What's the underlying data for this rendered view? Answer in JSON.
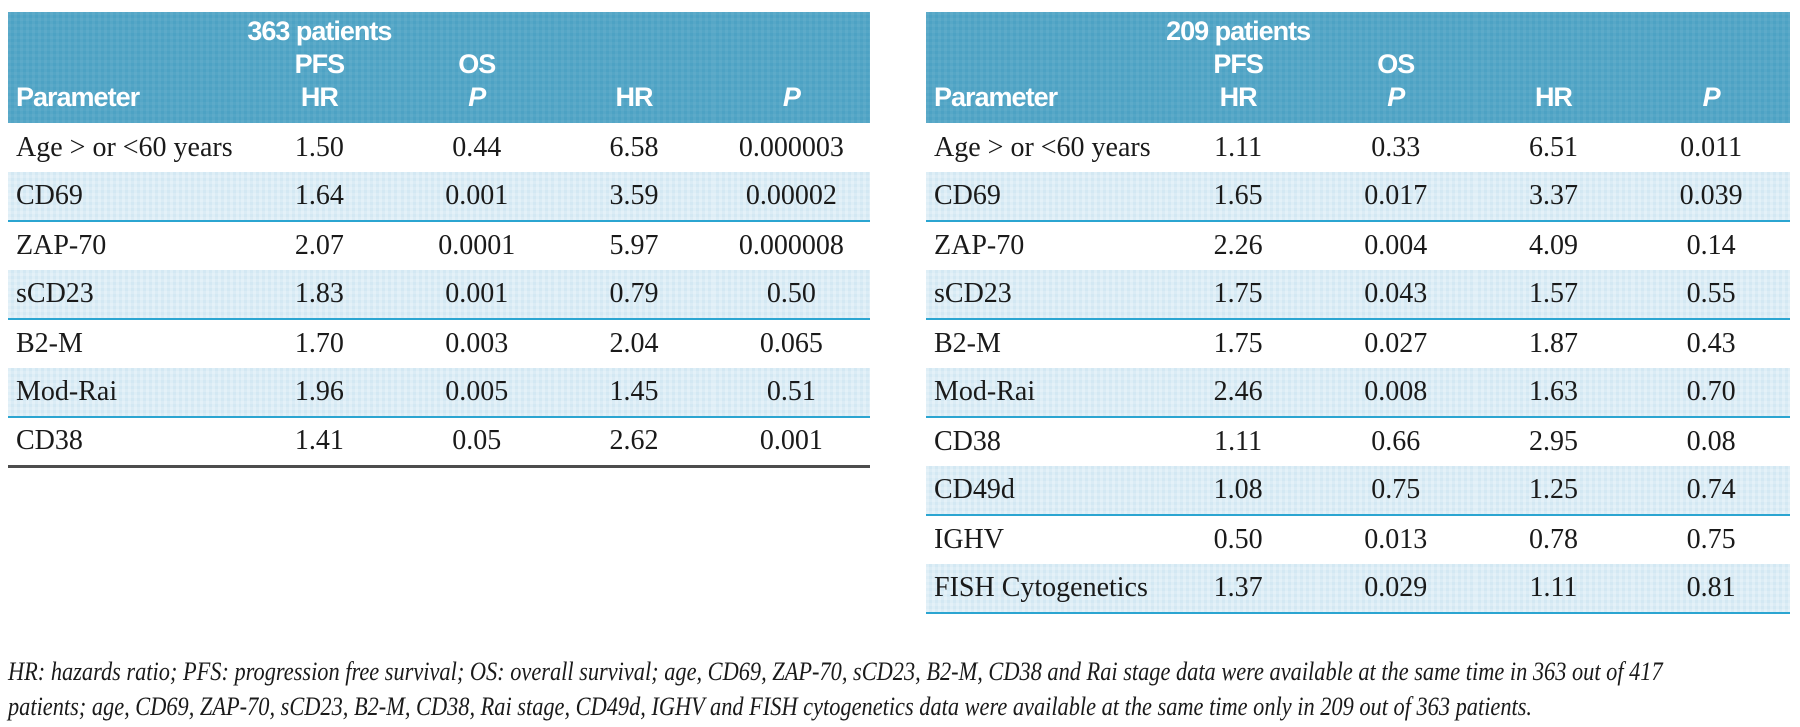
{
  "colors": {
    "header_bg": "#4da2c4",
    "header_text": "#ffffff",
    "stripe_bg": "#d3e8f3",
    "stripe_border": "#2ba5d1",
    "table_end_border": "#4d4d4d",
    "body_text": "#1a1a1a",
    "page_bg": "#ffffff"
  },
  "tables": [
    {
      "title": "363 patients",
      "headers": {
        "parameter": "Parameter",
        "group_pfs": "PFS",
        "group_os": "OS",
        "hr": "HR",
        "p": "P"
      },
      "rows": [
        [
          "Age > or <60 years",
          "1.50",
          "0.44",
          "6.58",
          "0.000003"
        ],
        [
          "CD69",
          "1.64",
          "0.001",
          "3.59",
          "0.00002"
        ],
        [
          "ZAP-70",
          "2.07",
          "0.0001",
          "5.97",
          "0.000008"
        ],
        [
          "sCD23",
          "1.83",
          "0.001",
          "0.79",
          "0.50"
        ],
        [
          "B2-M",
          "1.70",
          "0.003",
          "2.04",
          "0.065"
        ],
        [
          "Mod-Rai",
          "1.96",
          "0.005",
          "1.45",
          "0.51"
        ],
        [
          "CD38",
          "1.41",
          "0.05",
          "2.62",
          "0.001"
        ]
      ]
    },
    {
      "title": "209 patients",
      "headers": {
        "parameter": "Parameter",
        "group_pfs": "PFS",
        "group_os": "OS",
        "hr": "HR",
        "p": "P"
      },
      "rows": [
        [
          "Age > or <60 years",
          "1.11",
          "0.33",
          "6.51",
          "0.011"
        ],
        [
          "CD69",
          "1.65",
          "0.017",
          "3.37",
          "0.039"
        ],
        [
          "ZAP-70",
          "2.26",
          "0.004",
          "4.09",
          "0.14"
        ],
        [
          "sCD23",
          "1.75",
          "0.043",
          "1.57",
          "0.55"
        ],
        [
          "B2-M",
          "1.75",
          "0.027",
          "1.87",
          "0.43"
        ],
        [
          "Mod-Rai",
          "2.46",
          "0.008",
          "1.63",
          "0.70"
        ],
        [
          "CD38",
          "1.11",
          "0.66",
          "2.95",
          "0.08"
        ],
        [
          "CD49d",
          "1.08",
          "0.75",
          "1.25",
          "0.74"
        ],
        [
          "IGHV",
          "0.50",
          "0.013",
          "0.78",
          "0.75"
        ],
        [
          "FISH Cytogenetics",
          "1.37",
          "0.029",
          "1.11",
          "0.81"
        ]
      ]
    }
  ],
  "footnote": {
    "lines": [
      "HR: hazards ratio; PFS: progression free survival; OS: overall survival; age, CD69, ZAP-70, sCD23, B2-M, CD38 and Rai stage data were available at the same time in 363 out of 417",
      "patients; age, CD69, ZAP-70, sCD23, B2-M, CD38, Rai stage, CD49d, IGHV and FISH cytogenetics data were available at the same time only in 209 out of 363 patients."
    ]
  }
}
